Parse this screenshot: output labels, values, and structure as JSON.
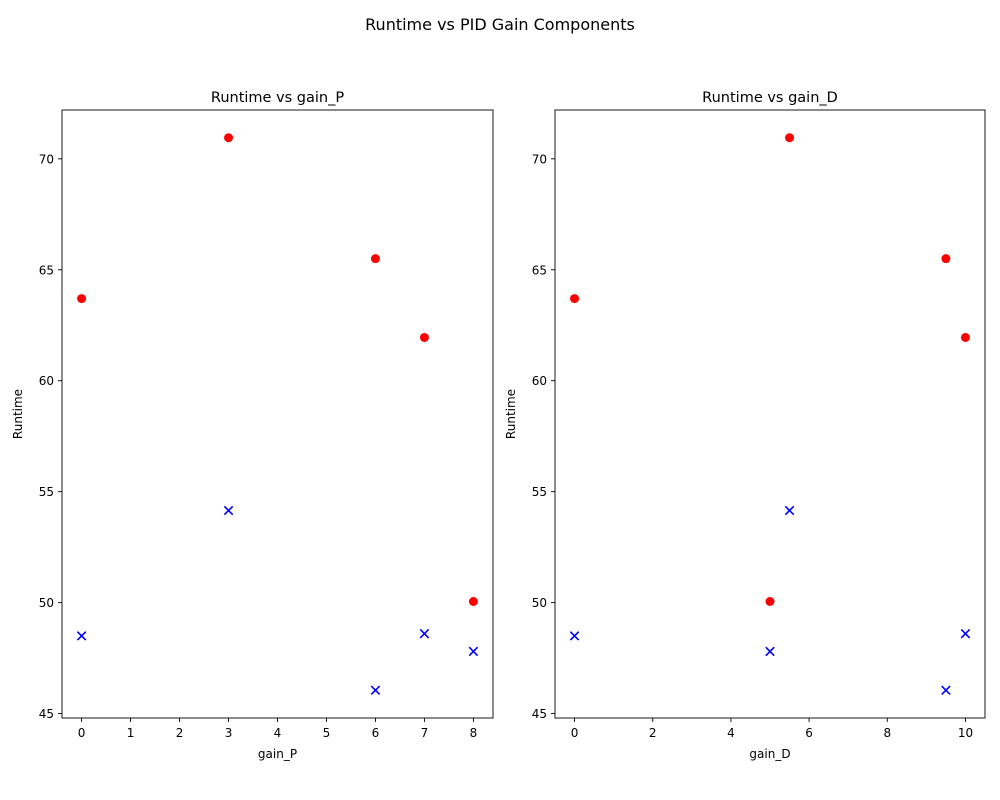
{
  "figure": {
    "suptitle": "Runtime vs PID Gain Components"
  },
  "chart_data": [
    {
      "type": "scatter",
      "title": "Runtime vs gain_P",
      "xlabel": "gain_P",
      "ylabel": "Runtime",
      "xlim": [
        -0.4,
        8.4
      ],
      "ylim": [
        44.8,
        72.2
      ],
      "xticks": [
        0,
        1,
        2,
        3,
        4,
        5,
        6,
        7,
        8
      ],
      "yticks": [
        45,
        50,
        55,
        60,
        65,
        70
      ],
      "grid": false,
      "series": [
        {
          "marker": "circle",
          "color": "#ff0000",
          "x": [
            0,
            3,
            6,
            7,
            8
          ],
          "y": [
            63.7,
            70.95,
            65.5,
            61.95,
            50.05
          ]
        },
        {
          "marker": "x",
          "color": "#0000ff",
          "x": [
            0,
            3,
            6,
            7,
            8
          ],
          "y": [
            48.5,
            54.15,
            46.05,
            48.6,
            47.8
          ]
        }
      ]
    },
    {
      "type": "scatter",
      "title": "Runtime vs gain_D",
      "xlabel": "gain_D",
      "ylabel": "Runtime",
      "xlim": [
        -0.5,
        10.5
      ],
      "ylim": [
        44.8,
        72.2
      ],
      "xticks": [
        0,
        2,
        4,
        6,
        8,
        10
      ],
      "yticks": [
        45,
        50,
        55,
        60,
        65,
        70
      ],
      "grid": false,
      "series": [
        {
          "marker": "circle",
          "color": "#ff0000",
          "x": [
            0,
            5.5,
            9.5,
            10,
            5
          ],
          "y": [
            63.7,
            70.95,
            65.5,
            61.95,
            50.05
          ]
        },
        {
          "marker": "x",
          "color": "#0000ff",
          "x": [
            0,
            5.5,
            9.5,
            10,
            5
          ],
          "y": [
            48.5,
            54.15,
            46.05,
            48.6,
            47.8
          ]
        }
      ]
    }
  ]
}
